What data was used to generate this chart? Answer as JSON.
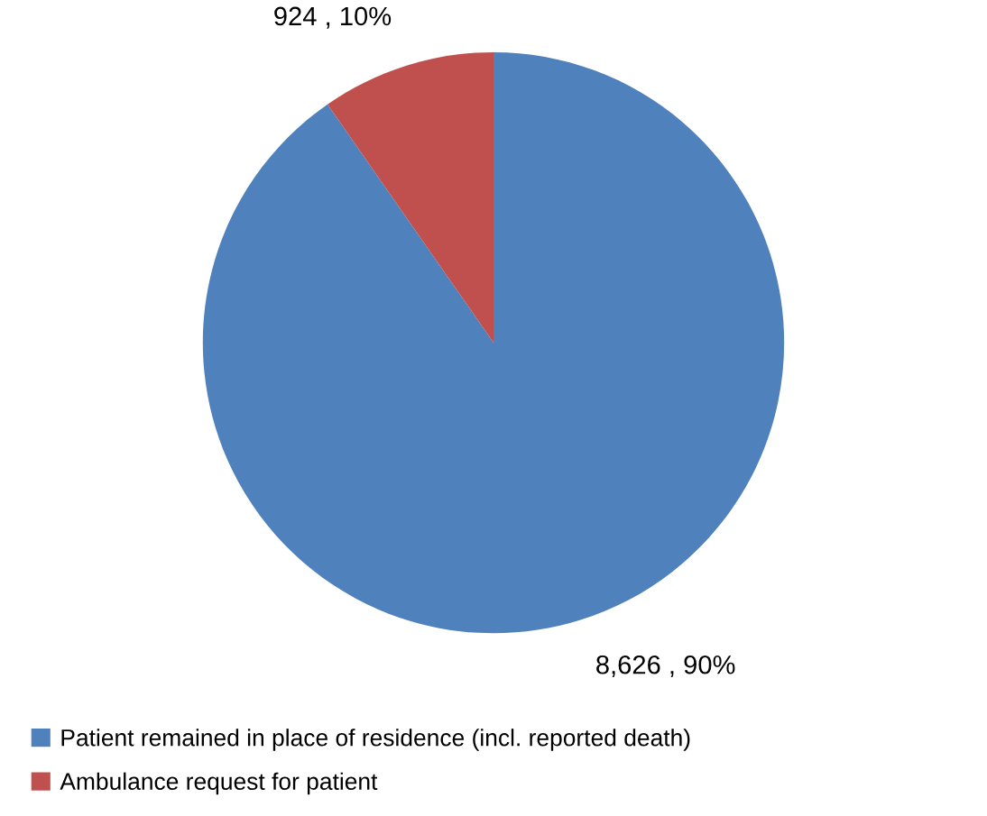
{
  "chart_data": {
    "type": "pie",
    "categories": [
      "Patient remained in place of residence (incl. reported death)",
      "Ambulance request for patient"
    ],
    "values": [
      8626,
      924
    ],
    "colors": [
      "#4f81bd",
      "#c0504d"
    ],
    "value_labels": [
      "8,626 , 90%",
      "924 , 10%"
    ],
    "legend": "bottom"
  }
}
